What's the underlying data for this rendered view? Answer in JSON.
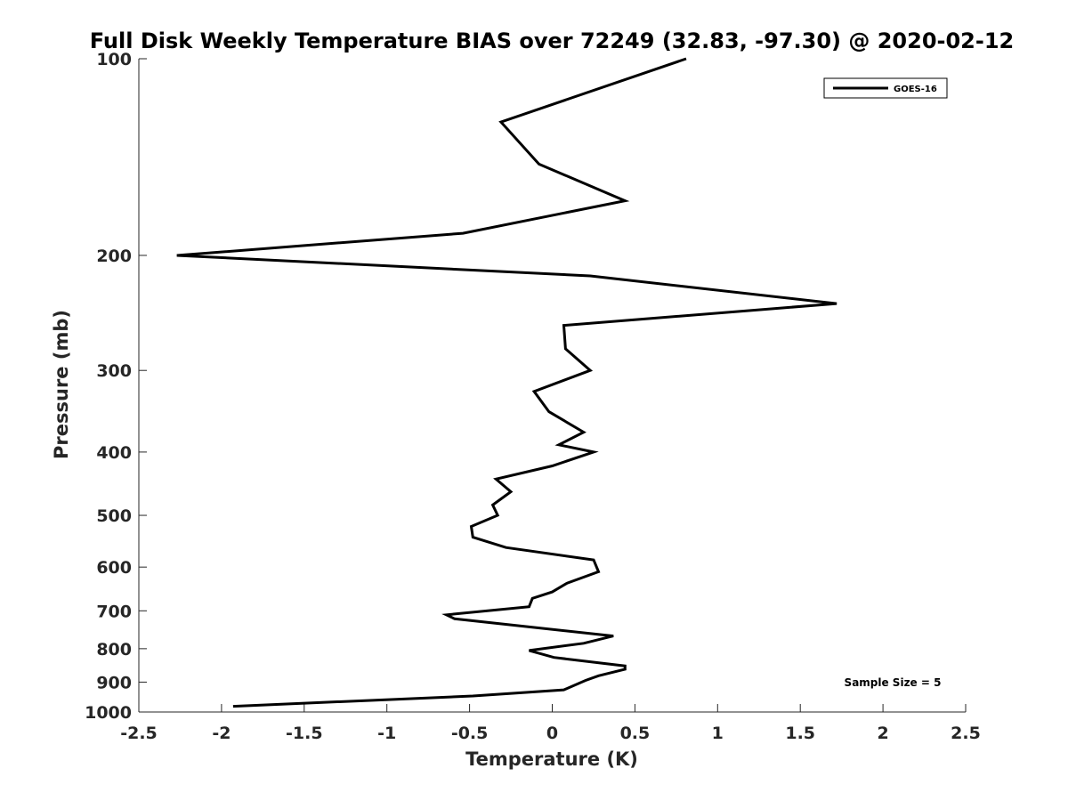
{
  "chart_data": {
    "type": "line",
    "title": "Full Disk Weekly Temperature BIAS over 72249 (32.83, -97.30) @ 2020-02-12",
    "xlabel": "Temperature (K)",
    "ylabel": "Pressure (mb)",
    "xlim": [
      -2.5,
      2.5
    ],
    "ylim": [
      1000,
      100
    ],
    "yscale": "log",
    "y_reversed": true,
    "grid": false,
    "legend_position": "top-right",
    "x_ticks": [
      -2.5,
      -2,
      -1.5,
      -1,
      -0.5,
      0,
      0.5,
      1,
      1.5,
      2,
      2.5
    ],
    "x_tick_labels": [
      "-2.5",
      "-2",
      "-1.5",
      "-1",
      "-0.5",
      "0",
      "0.5",
      "1",
      "1.5",
      "2",
      "2.5"
    ],
    "y_ticks": [
      100,
      200,
      300,
      400,
      500,
      600,
      700,
      800,
      900,
      1000
    ],
    "y_tick_labels": [
      "100",
      "200",
      "300",
      "400",
      "500",
      "600",
      "700",
      "800",
      "900",
      "1000"
    ],
    "annotation": "Sample Size = 5",
    "series": [
      {
        "name": "GOES-16",
        "color": "#000000",
        "points": [
          {
            "x": 0.81,
            "y": 100
          },
          {
            "x": -0.31,
            "y": 125
          },
          {
            "x": -0.08,
            "y": 145
          },
          {
            "x": 0.44,
            "y": 165
          },
          {
            "x": -0.54,
            "y": 185
          },
          {
            "x": -2.27,
            "y": 200
          },
          {
            "x": 0.23,
            "y": 215
          },
          {
            "x": 1.72,
            "y": 237
          },
          {
            "x": 0.07,
            "y": 256
          },
          {
            "x": 0.08,
            "y": 278
          },
          {
            "x": 0.23,
            "y": 300
          },
          {
            "x": -0.11,
            "y": 323
          },
          {
            "x": -0.02,
            "y": 347
          },
          {
            "x": 0.19,
            "y": 373
          },
          {
            "x": 0.04,
            "y": 390
          },
          {
            "x": 0.25,
            "y": 400
          },
          {
            "x": 0.0,
            "y": 420
          },
          {
            "x": -0.34,
            "y": 440
          },
          {
            "x": -0.25,
            "y": 460
          },
          {
            "x": -0.36,
            "y": 482
          },
          {
            "x": -0.33,
            "y": 500
          },
          {
            "x": -0.49,
            "y": 520
          },
          {
            "x": -0.48,
            "y": 540
          },
          {
            "x": -0.28,
            "y": 560
          },
          {
            "x": 0.25,
            "y": 585
          },
          {
            "x": 0.28,
            "y": 610
          },
          {
            "x": 0.09,
            "y": 635
          },
          {
            "x": 0.0,
            "y": 655
          },
          {
            "x": -0.12,
            "y": 670
          },
          {
            "x": -0.14,
            "y": 690
          },
          {
            "x": -0.64,
            "y": 710
          },
          {
            "x": -0.59,
            "y": 720
          },
          {
            "x": 0.37,
            "y": 765
          },
          {
            "x": 0.19,
            "y": 785
          },
          {
            "x": -0.14,
            "y": 805
          },
          {
            "x": 0.01,
            "y": 825
          },
          {
            "x": 0.44,
            "y": 850
          },
          {
            "x": 0.44,
            "y": 860
          },
          {
            "x": 0.28,
            "y": 880
          },
          {
            "x": 0.2,
            "y": 895
          },
          {
            "x": 0.07,
            "y": 925
          },
          {
            "x": -0.48,
            "y": 945
          },
          {
            "x": -1.93,
            "y": 980
          }
        ]
      }
    ]
  }
}
